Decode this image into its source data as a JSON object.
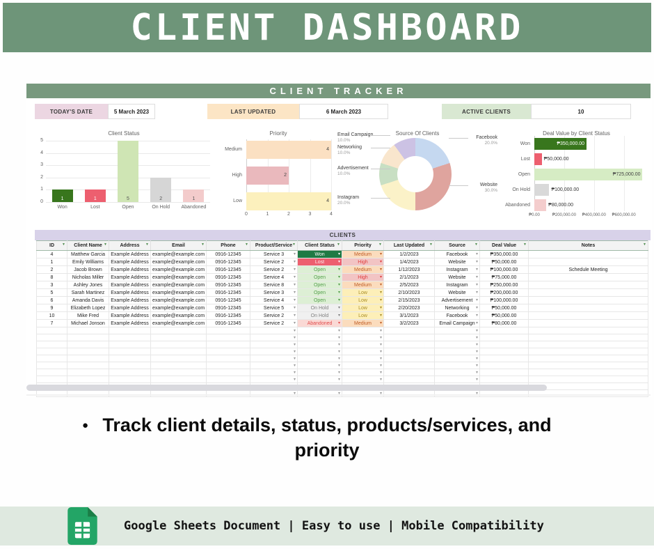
{
  "banner": {
    "title": "CLIENT DASHBOARD"
  },
  "tracker_title": "CLIENT TRACKER",
  "info_boxes": [
    {
      "label": "TODAY'S DATE",
      "value": "5 March 2023",
      "label_bg": "#ecd6e2"
    },
    {
      "label": "LAST UPDATED",
      "value": "6 March 2023",
      "label_bg": "#fce5c5"
    },
    {
      "label": "ACTIVE CLIENTS",
      "value": "10",
      "label_bg": "#d9e8d2"
    }
  ],
  "chart_data": [
    {
      "type": "bar",
      "title": "Client Status",
      "categories": [
        "Won",
        "Lost",
        "Open",
        "On Hold",
        "Abandoned"
      ],
      "values": [
        1,
        1,
        5,
        2,
        1
      ],
      "bar_colors": [
        "#38761d",
        "#ed5f6f",
        "#cfe5b4",
        "#d6d6d6",
        "#f3cbcb"
      ],
      "ylim": [
        0,
        5
      ],
      "yticks": [
        0,
        1,
        2,
        3,
        4,
        5
      ],
      "grid": true,
      "legend": "none"
    },
    {
      "type": "bar",
      "orientation": "horizontal",
      "title": "Priority",
      "categories": [
        "Medium",
        "High",
        "Low"
      ],
      "values": [
        4,
        2,
        4
      ],
      "bar_colors": [
        "#fbe0c2",
        "#eab9bd",
        "#fcf0bd"
      ],
      "xlim": [
        0,
        4
      ],
      "xticks": [
        0,
        1,
        2,
        3,
        4
      ],
      "grid": true,
      "legend": "none"
    },
    {
      "type": "pie",
      "donut": true,
      "title": "Source Of Clients",
      "slices": [
        {
          "label": "Facebook",
          "pct": 20.0,
          "color": "#c5d8f0"
        },
        {
          "label": "Website",
          "pct": 30.0,
          "color": "#dfa49e"
        },
        {
          "label": "Instagram",
          "pct": 20.0,
          "color": "#fbf2c8"
        },
        {
          "label": "Advertisement",
          "pct": 10.0,
          "color": "#c8dfc3"
        },
        {
          "label": "Networking",
          "pct": 10.0,
          "color": "#f9e6cd"
        },
        {
          "label": "Email Campaign",
          "pct": 10.0,
          "color": "#ccc2e4"
        }
      ],
      "legend": "none"
    },
    {
      "type": "bar",
      "orientation": "horizontal",
      "title": "Deal Value by Client Status",
      "categories": [
        "Won",
        "Lost",
        "Open",
        "On Hold",
        "Abandoned"
      ],
      "values": [
        350000,
        50000,
        725000,
        100000,
        80000
      ],
      "value_labels": [
        "₱350,000.00",
        "₱50,000.00",
        "₱725,000.00",
        "₱100,000.00",
        "₱80,000.00"
      ],
      "bar_colors": [
        "#38761d",
        "#ed5f6f",
        "#d6ecc4",
        "#d9d9d9",
        "#f4cdcd"
      ],
      "xlim": [
        0,
        760000
      ],
      "xticks": [
        0,
        200000,
        400000,
        600000
      ],
      "xtick_labels": [
        "₱0.00",
        "₱200,000.00",
        "₱400,000.00",
        "₱600,000.00"
      ],
      "grid": true,
      "legend": "none"
    }
  ],
  "table": {
    "section_title": "CLIENTS",
    "columns": [
      "ID",
      "Client Name",
      "Address",
      "Email",
      "Phone",
      "Product/Service",
      "Client Status",
      "Priority",
      "Last Updated",
      "Source",
      "Deal Value",
      "Notes"
    ],
    "rows": [
      {
        "id": "4",
        "name": "Matthew Garcia",
        "address": "Example Address",
        "email": "example@example.com",
        "phone": "0916-12345",
        "product": "Service 3",
        "status": "Won",
        "priority": "Medium",
        "updated": "1/2/2023",
        "source": "Facebook",
        "value": "₱350,000.00",
        "notes": ""
      },
      {
        "id": "1",
        "name": "Emily Williams",
        "address": "Example Address",
        "email": "example@example.com",
        "phone": "0916-12345",
        "product": "Service 2",
        "status": "Lost",
        "priority": "High",
        "updated": "1/4/2023",
        "source": "Website",
        "value": "₱50,000.00",
        "notes": ""
      },
      {
        "id": "2",
        "name": "Jacob Brown",
        "address": "Example Address",
        "email": "example@example.com",
        "phone": "0916-12345",
        "product": "Service 2",
        "status": "Open",
        "priority": "Medium",
        "updated": "1/12/2023",
        "source": "Instagram",
        "value": "₱100,000.00",
        "notes": "Schedule Meeting"
      },
      {
        "id": "8",
        "name": "Nicholas Miller",
        "address": "Example Address",
        "email": "example@example.com",
        "phone": "0916-12345",
        "product": "Service 4",
        "status": "Open",
        "priority": "High",
        "updated": "2/1/2023",
        "source": "Website",
        "value": "₱75,000.00",
        "notes": ""
      },
      {
        "id": "3",
        "name": "Ashley Jones",
        "address": "Example Address",
        "email": "example@example.com",
        "phone": "0916-12345",
        "product": "Service 8",
        "status": "Open",
        "priority": "Medium",
        "updated": "2/5/2023",
        "source": "Instagram",
        "value": "₱250,000.00",
        "notes": ""
      },
      {
        "id": "5",
        "name": "Sarah Martinez",
        "address": "Example Address",
        "email": "example@example.com",
        "phone": "0916-12345",
        "product": "Service 3",
        "status": "Open",
        "priority": "Low",
        "updated": "2/10/2023",
        "source": "Website",
        "value": "₱200,000.00",
        "notes": ""
      },
      {
        "id": "6",
        "name": "Amanda Davis",
        "address": "Example Address",
        "email": "example@example.com",
        "phone": "0916-12345",
        "product": "Service 4",
        "status": "Open",
        "priority": "Low",
        "updated": "2/15/2023",
        "source": "Advertisement",
        "value": "₱100,000.00",
        "notes": ""
      },
      {
        "id": "9",
        "name": "Elizabeth Lopez",
        "address": "Example Address",
        "email": "example@example.com",
        "phone": "0916-12345",
        "product": "Service 5",
        "status": "On Hold",
        "priority": "Low",
        "updated": "2/20/2023",
        "source": "Networking",
        "value": "₱50,000.00",
        "notes": ""
      },
      {
        "id": "10",
        "name": "Mike Fred",
        "address": "Example Address",
        "email": "example@example.com",
        "phone": "0916-12345",
        "product": "Service 2",
        "status": "On Hold",
        "priority": "Low",
        "updated": "3/1/2023",
        "source": "Facebook",
        "value": "₱50,000.00",
        "notes": ""
      },
      {
        "id": "7",
        "name": "Michael Jonson",
        "address": "Example Address",
        "email": "example@example.com",
        "phone": "0916-12345",
        "product": "Service 2",
        "status": "Abandoned",
        "priority": "Medium",
        "updated": "3/2/2023",
        "source": "Email Campaign",
        "value": "₱80,000.00",
        "notes": ""
      }
    ],
    "empty_rows": 10
  },
  "bullet_text": "Track client details, status, products/services, and priority",
  "footer": {
    "text": "Google Sheets Document | Easy to use | Mobile Compatibility"
  },
  "icons": {
    "filter": "▼",
    "dropdown": "▾",
    "bullet": "●",
    "sheets_logo": "google-sheets-icon"
  },
  "colors": {
    "banner_green": "#6e9579",
    "tracker_green": "#78997e",
    "footer_band": "#dfe9e0",
    "sheets_icon_green": "#23a566",
    "sheets_icon_fold": "#1b7e47",
    "clients_bar": "#d8d2e9",
    "header_row": "#f3f3f3",
    "table_border": "#3c8a4e",
    "status": {
      "Won": {
        "bg": "#1f7a44",
        "fg": "#ffffff"
      },
      "Lost": {
        "bg": "#ed5f6f",
        "fg": "#ffeef1"
      },
      "Open": {
        "bg": "#ddefd5",
        "fg": "#55a04c"
      },
      "On Hold": {
        "bg": "#f0f0f0",
        "fg": "#808080"
      },
      "Abandoned": {
        "bg": "#fad9d5",
        "fg": "#e14b4b"
      }
    },
    "priority": {
      "Medium": {
        "bg": "#fbdcbd",
        "fg": "#bf5b22"
      },
      "High": {
        "bg": "#f2c4c4",
        "fg": "#e03c3c"
      },
      "Low": {
        "bg": "#fdefb8",
        "fg": "#a98d25"
      }
    }
  }
}
